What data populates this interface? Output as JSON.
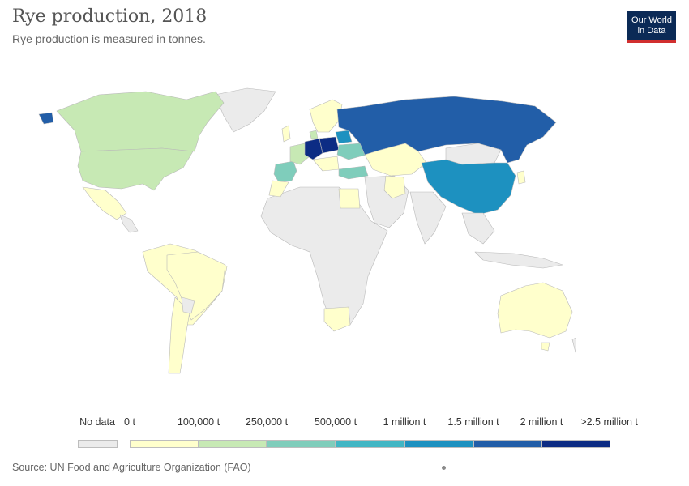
{
  "header": {
    "title": "Rye production, 2018",
    "subtitle": "Rye production is measured in tonnes."
  },
  "logo": {
    "line1": "Our World",
    "line2": "in Data",
    "bg": "#0b2a56",
    "accent": "#d12f2f"
  },
  "legend": {
    "no_data": {
      "label": "No data",
      "color": "#ebebeb"
    },
    "bins": [
      {
        "label": "0 t",
        "color": "#ffffcc"
      },
      {
        "label": "100,000 t",
        "color": "#c7e9b4"
      },
      {
        "label": "250,000 t",
        "color": "#7fcdbb"
      },
      {
        "label": "500,000 t",
        "color": "#41b6c4"
      },
      {
        "label": "1 million t",
        "color": "#1d91c0"
      },
      {
        "label": "1.5 million t",
        "color": "#225ea8"
      },
      {
        "label": "2 million t",
        "color": "#0c2c84"
      },
      {
        "label": ">2.5 million t",
        "color": ""
      }
    ]
  },
  "regions": [
    {
      "name": "Russia",
      "bin": 5
    },
    {
      "name": "Germany",
      "bin": 6
    },
    {
      "name": "Poland",
      "bin": 6
    },
    {
      "name": "Belarus",
      "bin": 4
    },
    {
      "name": "China",
      "bin": 4
    },
    {
      "name": "Ukraine",
      "bin": 2
    },
    {
      "name": "Spain",
      "bin": 2
    },
    {
      "name": "Turkey",
      "bin": 2
    },
    {
      "name": "Canada",
      "bin": 1
    },
    {
      "name": "United States",
      "bin": 1
    },
    {
      "name": "Denmark",
      "bin": 1
    },
    {
      "name": "Kazakhstan",
      "bin": 0
    },
    {
      "name": "Australia",
      "bin": 0
    },
    {
      "name": "Brazil",
      "bin": 0
    },
    {
      "name": "Argentina",
      "bin": 0
    },
    {
      "name": "Egypt",
      "bin": 0
    },
    {
      "name": "South Africa",
      "bin": 0
    }
  ],
  "footer": {
    "source": "Source: UN Food and Agriculture Organization (FAO)"
  }
}
